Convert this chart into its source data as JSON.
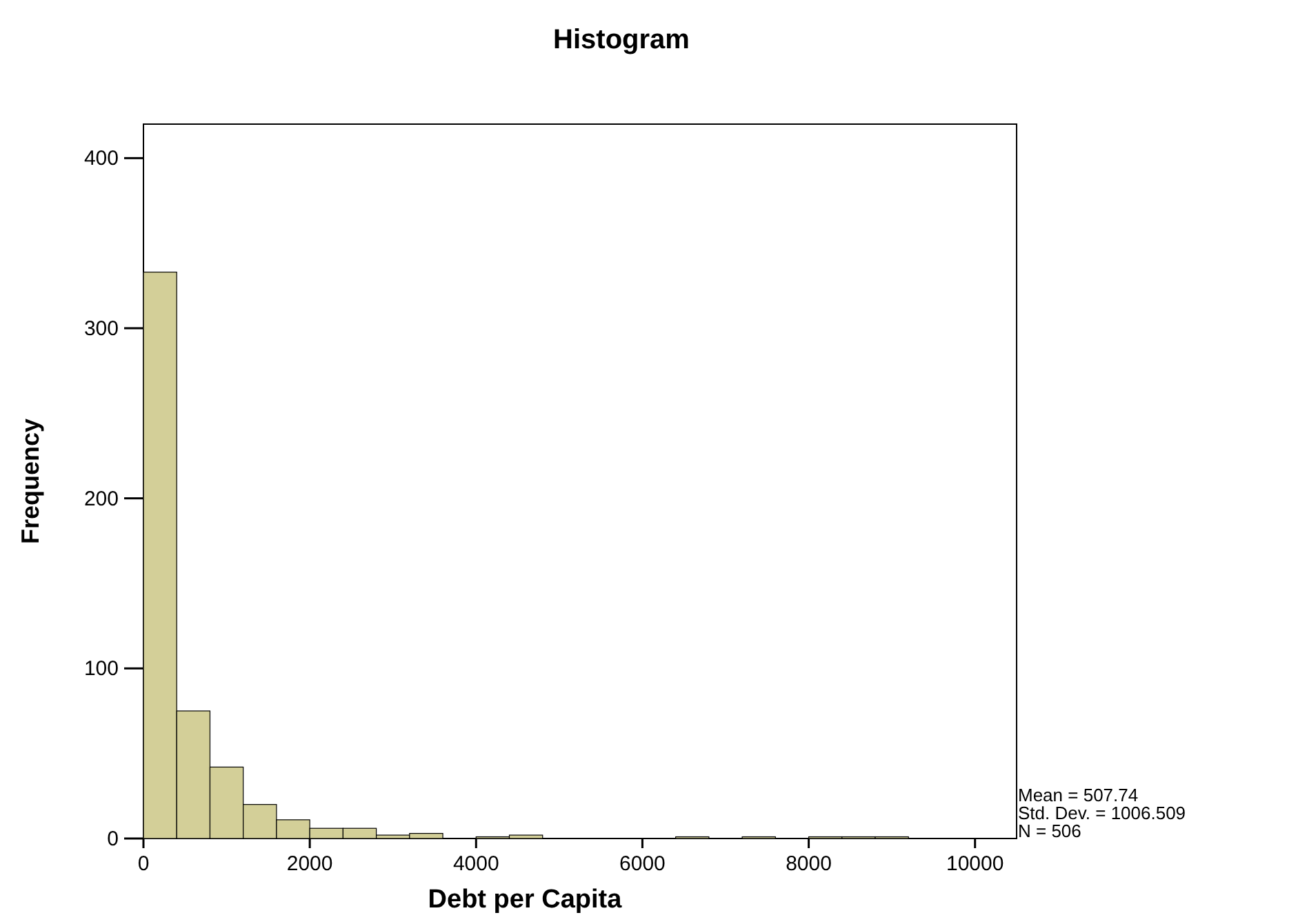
{
  "chart_data": {
    "type": "histogram",
    "title": "Histogram",
    "xlabel": "Debt per Capita",
    "ylabel": "Frequency",
    "bins": [
      0,
      400,
      800,
      1200,
      1600,
      2000,
      2400,
      2800,
      3200,
      3600,
      4000,
      4400,
      4800,
      5200,
      5600,
      6000,
      6400,
      6800,
      7200,
      7600,
      8000,
      8400,
      8800,
      9200
    ],
    "values": [
      333,
      75,
      42,
      20,
      11,
      6,
      6,
      2,
      3,
      0,
      1,
      2,
      0,
      0,
      0,
      0,
      1,
      0,
      1,
      0,
      1,
      1,
      1
    ],
    "color": "#d3cf98",
    "xlim": [
      0,
      10500
    ],
    "xticks": [
      0,
      2000,
      4000,
      6000,
      8000,
      10000
    ],
    "ylim": [
      0,
      420
    ],
    "yticks": [
      0,
      100,
      200,
      300,
      400
    ],
    "grid": false,
    "annotations": [
      "Mean = 507.74",
      "Std. Dev. = 1006.509",
      "N = 506"
    ]
  }
}
